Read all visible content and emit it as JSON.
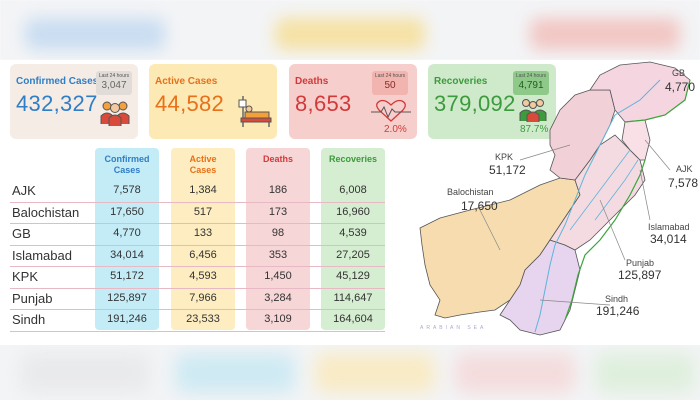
{
  "cards": [
    {
      "label": "Confirmed Cases",
      "value": "432,327",
      "last24_title": "Last 24 hours",
      "last24": "3,047",
      "color": "#2f7ec6",
      "bg": "#f6ece6"
    },
    {
      "label": "Active Cases",
      "value": "44,582",
      "color": "#e8701a",
      "bg": "#fce9b4"
    },
    {
      "label": "Deaths",
      "value": "8,653",
      "last24_title": "Last 24 hours",
      "last24": "50",
      "pct": "2.0%",
      "color": "#d23a3a",
      "bg": "#f6cfcc"
    },
    {
      "label": "Recoveries",
      "value": "379,092",
      "last24_title": "Last 24 hours",
      "last24": "4,791",
      "pct": "87.7%",
      "color": "#3d9a3d",
      "bg": "#cfeacb"
    }
  ],
  "table": {
    "headers": [
      "Confirmed\nCases",
      "Active\nCases",
      "Deaths",
      "Recoveries"
    ],
    "header_colors": [
      "#2f7ec6",
      "#e8701a",
      "#d23a3a",
      "#3d9a3d"
    ],
    "col_bgs": [
      "#c4ecf6",
      "#fdedc0",
      "#f7d6d7",
      "#d5edd0"
    ],
    "rows": [
      {
        "region": "AJK",
        "values": [
          "7,578",
          "1,384",
          "186",
          "6,008"
        ]
      },
      {
        "region": "Balochistan",
        "values": [
          "17,650",
          "517",
          "173",
          "16,960"
        ]
      },
      {
        "region": "GB",
        "values": [
          "4,770",
          "133",
          "98",
          "4,539"
        ]
      },
      {
        "region": "Islamabad",
        "values": [
          "34,014",
          "6,456",
          "353",
          "27,205"
        ]
      },
      {
        "region": "KPK",
        "values": [
          "51,172",
          "4,593",
          "1,450",
          "45,129"
        ]
      },
      {
        "region": "Punjab",
        "values": [
          "125,897",
          "7,966",
          "3,284",
          "114,647"
        ]
      },
      {
        "region": "Sindh",
        "values": [
          "191,246",
          "23,533",
          "3,109",
          "164,604"
        ]
      }
    ]
  },
  "map": {
    "labels": [
      {
        "name": "GB",
        "value": "4,770"
      },
      {
        "name": "KPK",
        "value": "51,172"
      },
      {
        "name": "AJK",
        "value": "7,578"
      },
      {
        "name": "Balochistan",
        "value": "17,650"
      },
      {
        "name": "Islamabad",
        "value": "34,014"
      },
      {
        "name": "Punjab",
        "value": "125,897"
      },
      {
        "name": "Sindh",
        "value": "191,246"
      }
    ],
    "sea_text": "ARABIAN SEA"
  },
  "icons": [
    "people-group-icon",
    "hospital-bed-icon",
    "heartbeat-icon",
    "recovered-people-icon"
  ]
}
